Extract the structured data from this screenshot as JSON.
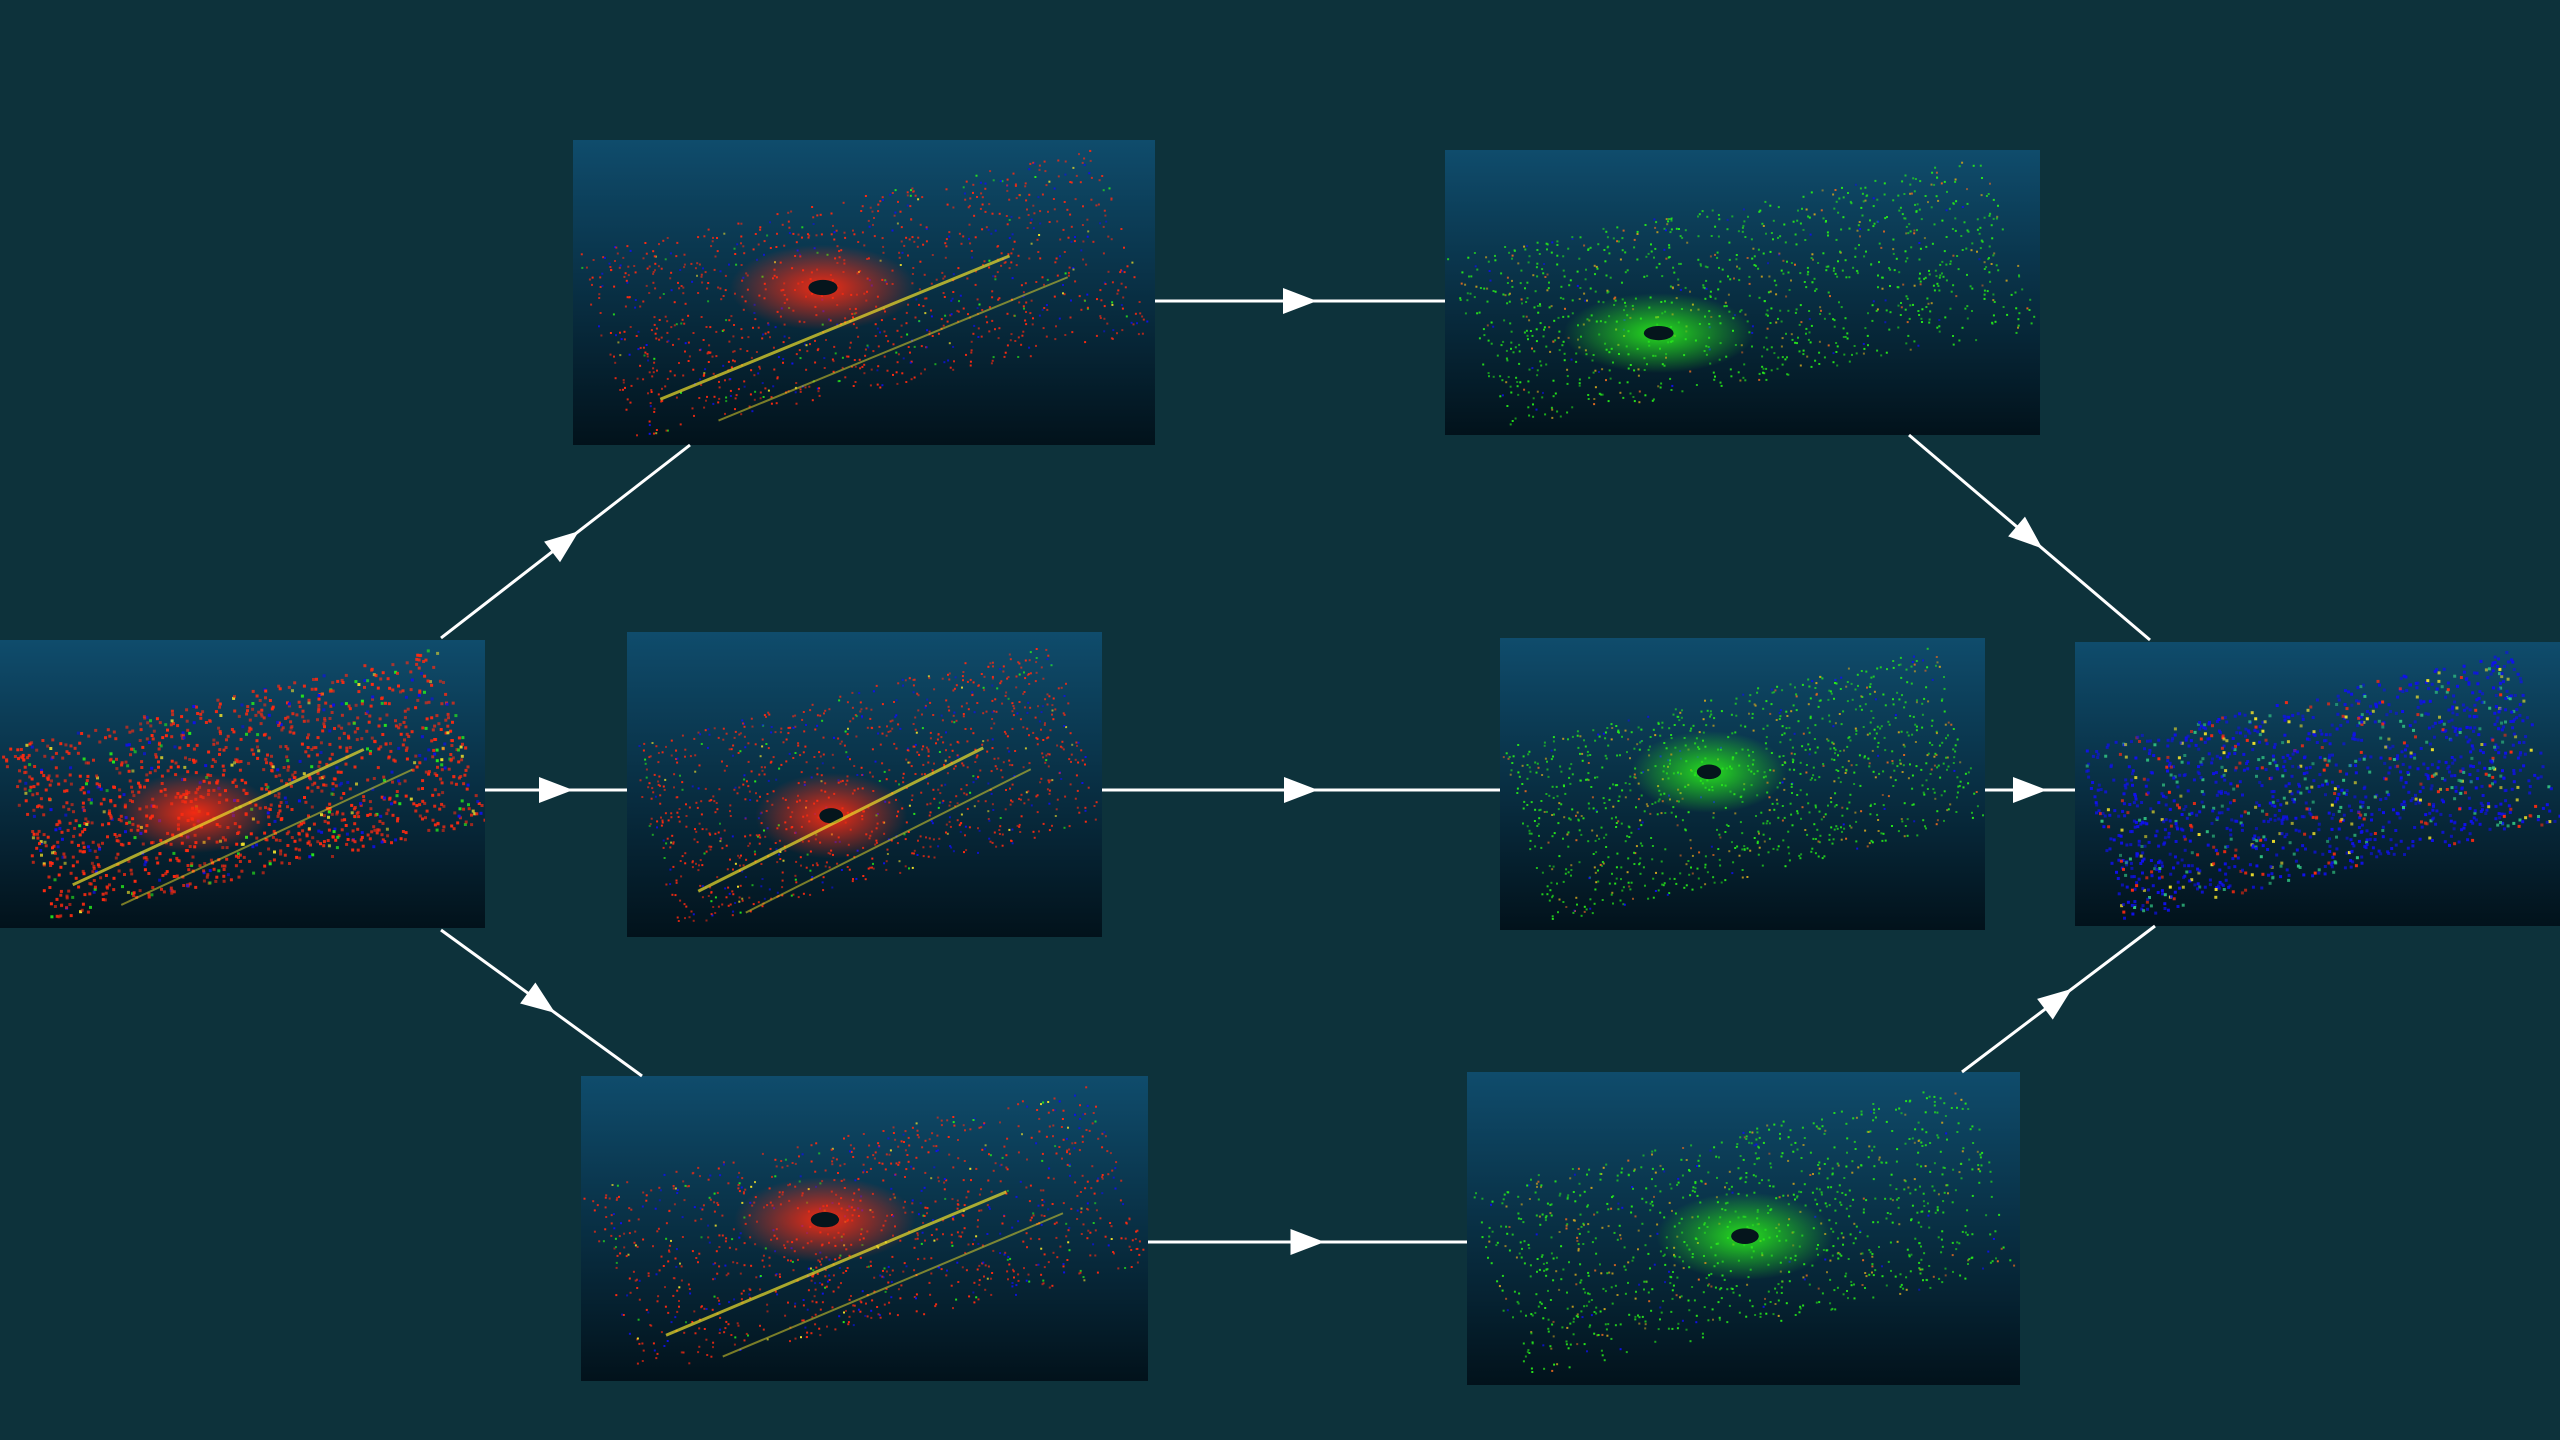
{
  "colors": {
    "background": "#0d323b",
    "panel_top": "#0f4c6c",
    "panel_bottom": "#02121b",
    "arrow": "#ffffff",
    "red_cloud": "#ff2a10",
    "green_cloud": "#27e81b",
    "blue_cloud": "#1010f0",
    "highlight": "#f0e02a"
  },
  "panels": [
    {
      "id": "input",
      "name": "input-point-cloud-panel",
      "theme": "red-dense",
      "seed": 11
    },
    {
      "id": "red-top",
      "name": "branch-top-source-panel",
      "theme": "red-sparse",
      "seed": 23
    },
    {
      "id": "red-mid",
      "name": "branch-middle-source-panel",
      "theme": "red-sparse",
      "seed": 37
    },
    {
      "id": "red-bot",
      "name": "branch-bottom-source-panel",
      "theme": "red-sparse",
      "seed": 51
    },
    {
      "id": "green-top",
      "name": "branch-top-result-panel",
      "theme": "green",
      "seed": 67
    },
    {
      "id": "green-mid",
      "name": "branch-middle-result-panel",
      "theme": "green",
      "seed": 79
    },
    {
      "id": "green-bot",
      "name": "branch-bottom-result-panel",
      "theme": "green",
      "seed": 91
    },
    {
      "id": "output",
      "name": "merged-output-panel",
      "theme": "blue-output",
      "seed": 103
    }
  ],
  "arrows": [
    {
      "name": "arrow-input-to-top"
    },
    {
      "name": "arrow-input-to-middle"
    },
    {
      "name": "arrow-input-to-bottom"
    },
    {
      "name": "arrow-top-red-to-green"
    },
    {
      "name": "arrow-middle-red-to-green"
    },
    {
      "name": "arrow-bottom-red-to-green"
    },
    {
      "name": "arrow-top-green-to-output"
    },
    {
      "name": "arrow-middle-green-to-output"
    },
    {
      "name": "arrow-bottom-green-to-output"
    }
  ]
}
